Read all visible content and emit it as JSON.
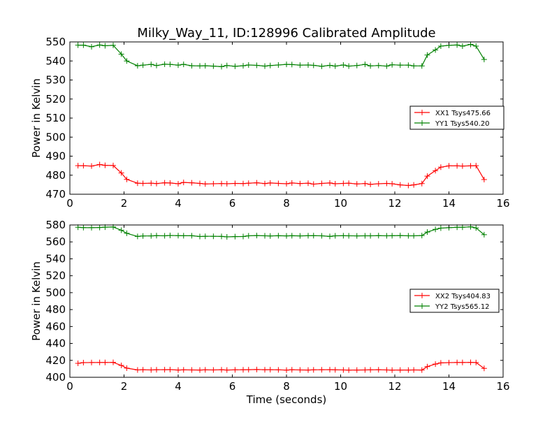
{
  "title": "Milky_Way_11, ID:128996 Calibrated Amplitude",
  "chart_data": [
    {
      "type": "line",
      "title": "Milky_Way_11, ID:128996 Calibrated Amplitude",
      "xlabel": "",
      "ylabel": "Power in Kelvin",
      "xlim": [
        0,
        16
      ],
      "ylim": [
        470,
        550
      ],
      "xticks": [
        0,
        2,
        4,
        6,
        8,
        10,
        12,
        14,
        16
      ],
      "yticks": [
        470,
        480,
        490,
        500,
        510,
        520,
        530,
        540,
        550
      ],
      "grid": false,
      "legend_position": "center-right",
      "x": [
        0.3,
        0.5,
        0.8,
        1.1,
        1.3,
        1.6,
        1.9,
        2.1,
        2.5,
        2.7,
        3.0,
        3.2,
        3.5,
        3.7,
        4.0,
        4.2,
        4.5,
        4.8,
        5.0,
        5.3,
        5.6,
        5.8,
        6.1,
        6.4,
        6.6,
        6.9,
        7.2,
        7.4,
        7.7,
        8.0,
        8.2,
        8.5,
        8.8,
        9.0,
        9.3,
        9.6,
        9.8,
        10.1,
        10.3,
        10.6,
        10.9,
        11.1,
        11.4,
        11.7,
        11.9,
        12.2,
        12.5,
        12.7,
        13.0,
        13.2,
        13.5,
        13.7,
        14.0,
        14.3,
        14.5,
        14.8,
        15.0,
        15.3
      ],
      "series": [
        {
          "name": "XX1 Tsys475.66",
          "color": "#ff0000",
          "values": [
            485,
            485,
            484.8,
            485.6,
            485.2,
            485.1,
            481.2,
            477.8,
            475.8,
            475.7,
            475.8,
            475.6,
            476,
            475.9,
            475.5,
            476.2,
            476,
            475.7,
            475.4,
            475.5,
            475.6,
            475.5,
            475.7,
            475.6,
            475.8,
            476,
            475.6,
            475.9,
            475.7,
            475.5,
            475.9,
            475.6,
            475.8,
            475.3,
            475.7,
            475.9,
            475.5,
            475.7,
            475.8,
            475.4,
            475.6,
            475.2,
            475.5,
            475.7,
            475.5,
            474.9,
            474.6,
            474.9,
            475.6,
            479.5,
            482.4,
            484.2,
            484.9,
            484.9,
            484.8,
            484.9,
            485,
            477.7
          ]
        },
        {
          "name": "YY1 Tsys540.20",
          "color": "#008000",
          "values": [
            548.3,
            548.3,
            547.5,
            548.4,
            548,
            548.2,
            543.6,
            540,
            537.5,
            537.8,
            538.2,
            537.6,
            538.3,
            538.2,
            537.8,
            538.2,
            537.5,
            537.4,
            537.5,
            537.3,
            537,
            537.6,
            537.2,
            537.5,
            537.9,
            537.7,
            537.3,
            537.6,
            537.9,
            538.2,
            538.1,
            537.8,
            537.9,
            537.7,
            537.2,
            537.7,
            537.3,
            537.9,
            537.3,
            537.6,
            538.2,
            537.4,
            537.6,
            537.3,
            538,
            537.8,
            537.8,
            537.4,
            537.4,
            543.1,
            545.8,
            547.8,
            548.2,
            548.4,
            547.8,
            548.7,
            547.8,
            540.8
          ]
        }
      ]
    },
    {
      "type": "line",
      "title": "",
      "xlabel": "Time (seconds)",
      "ylabel": "Power in Kelvin",
      "xlim": [
        0,
        16
      ],
      "ylim": [
        400,
        580
      ],
      "xticks": [
        0,
        2,
        4,
        6,
        8,
        10,
        12,
        14,
        16
      ],
      "yticks": [
        400,
        420,
        440,
        460,
        480,
        500,
        520,
        540,
        560,
        580
      ],
      "grid": false,
      "legend_position": "center-right",
      "x": [
        0.3,
        0.5,
        0.8,
        1.1,
        1.3,
        1.6,
        1.9,
        2.1,
        2.5,
        2.7,
        3.0,
        3.2,
        3.5,
        3.7,
        4.0,
        4.2,
        4.5,
        4.8,
        5.0,
        5.3,
        5.6,
        5.8,
        6.1,
        6.4,
        6.6,
        6.9,
        7.2,
        7.4,
        7.7,
        8.0,
        8.2,
        8.5,
        8.8,
        9.0,
        9.3,
        9.6,
        9.8,
        10.1,
        10.3,
        10.6,
        10.9,
        11.1,
        11.4,
        11.7,
        11.9,
        12.2,
        12.5,
        12.7,
        13.0,
        13.2,
        13.5,
        13.7,
        14.0,
        14.3,
        14.5,
        14.8,
        15.0,
        15.3
      ],
      "series": [
        {
          "name": "XX2 Tsys404.83",
          "color": "#ff0000",
          "values": [
            416.5,
            417.3,
            417.4,
            417.5,
            417.5,
            417.6,
            414,
            410.8,
            408.7,
            408.9,
            408.7,
            408.9,
            409,
            409.1,
            408.6,
            408.8,
            408.7,
            408.6,
            408.8,
            408.7,
            408.9,
            408.6,
            408.8,
            408.9,
            409,
            409.2,
            408.9,
            409,
            408.8,
            408.5,
            408.9,
            408.7,
            408.6,
            408.8,
            408.9,
            409,
            408.8,
            408.7,
            408.5,
            408.6,
            408.7,
            408.8,
            408.9,
            408.7,
            408.5,
            408.6,
            408.6,
            408.7,
            408.6,
            412.6,
            415.6,
            417,
            417.3,
            417.5,
            417.5,
            417.6,
            417.4,
            410.5
          ]
        },
        {
          "name": "YY2 Tsys565.12",
          "color": "#008000",
          "values": [
            577.3,
            576.9,
            576.8,
            577,
            577.4,
            577.6,
            573.8,
            570.2,
            566.5,
            567,
            567.1,
            567.4,
            567.2,
            567.6,
            567.4,
            567.3,
            567.3,
            566.4,
            566.6,
            566.6,
            566.5,
            566,
            566.3,
            566.4,
            567.2,
            567.5,
            567.2,
            567,
            567.3,
            567.1,
            567.3,
            567.1,
            567.3,
            567.4,
            567.2,
            566.5,
            567.2,
            567.3,
            567.2,
            567.1,
            567.2,
            567.2,
            567.4,
            567.2,
            567.3,
            567.5,
            567.2,
            567.2,
            567.5,
            571.6,
            574.8,
            576.3,
            576.8,
            577.3,
            577.3,
            577.8,
            576.5,
            568.5
          ]
        }
      ]
    }
  ]
}
